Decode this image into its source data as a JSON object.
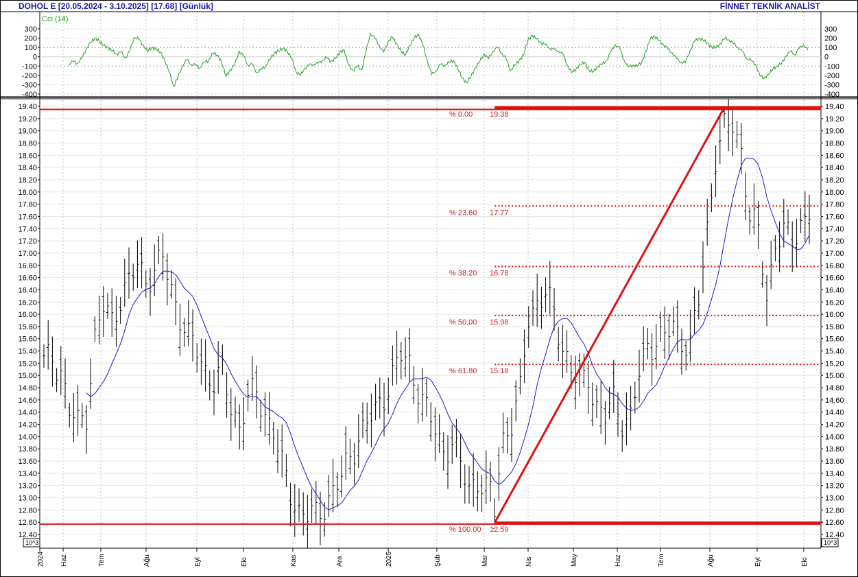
{
  "header": {
    "left": "DOHOL E  [20.05.2024 - 3.10.2025]  [17.68]  [Günlük]",
    "right": "FİNNET TEKNİK ANALİST"
  },
  "chart_data": [
    {
      "type": "line",
      "panel": "cci",
      "label": "Cci (14)",
      "ylim": [
        -400,
        300
      ],
      "yticks": [
        "300",
        "200",
        "100",
        "0",
        "-100",
        "-200",
        "-300",
        "-400"
      ],
      "grid": true,
      "colors": {
        "line": "#22a022",
        "grid": "#b8b8b8",
        "zero": "#888888"
      },
      "anchors": [
        [
          7,
          -80
        ],
        [
          8,
          -50
        ],
        [
          9,
          -70
        ],
        [
          10,
          -20
        ],
        [
          11,
          80
        ],
        [
          12,
          150
        ],
        [
          13,
          200
        ],
        [
          14,
          170
        ],
        [
          15,
          120
        ],
        [
          16,
          100
        ],
        [
          17,
          60
        ],
        [
          18,
          30
        ],
        [
          19,
          50
        ],
        [
          20,
          -10
        ],
        [
          21,
          60
        ],
        [
          22,
          210
        ],
        [
          23,
          190
        ],
        [
          24,
          130
        ],
        [
          25,
          60
        ],
        [
          26,
          100
        ],
        [
          27,
          80
        ],
        [
          28,
          50
        ],
        [
          29,
          -40
        ],
        [
          30,
          -160
        ],
        [
          31,
          -320
        ],
        [
          32,
          -220
        ],
        [
          33,
          -100
        ],
        [
          34,
          -30
        ],
        [
          35,
          -80
        ],
        [
          36,
          -90
        ],
        [
          37,
          -120
        ],
        [
          38,
          -60
        ],
        [
          39,
          -40
        ],
        [
          40,
          40
        ],
        [
          41,
          20
        ],
        [
          42,
          -60
        ],
        [
          43,
          -210
        ],
        [
          44,
          -140
        ],
        [
          45,
          -80
        ],
        [
          46,
          60
        ],
        [
          47,
          10
        ],
        [
          48,
          -90
        ],
        [
          49,
          -80
        ],
        [
          50,
          -170
        ],
        [
          51,
          -140
        ],
        [
          52,
          -100
        ],
        [
          53,
          -30
        ],
        [
          54,
          40
        ],
        [
          55,
          60
        ],
        [
          56,
          90
        ],
        [
          57,
          60
        ],
        [
          58,
          -20
        ],
        [
          59,
          -160
        ],
        [
          60,
          -200
        ],
        [
          61,
          -120
        ],
        [
          62,
          -90
        ],
        [
          63,
          -80
        ],
        [
          64,
          -70
        ],
        [
          65,
          -40
        ],
        [
          66,
          -10
        ],
        [
          67,
          -50
        ],
        [
          68,
          -20
        ],
        [
          69,
          50
        ],
        [
          70,
          70
        ],
        [
          71,
          -90
        ],
        [
          72,
          -150
        ],
        [
          73,
          -100
        ],
        [
          74,
          -140
        ],
        [
          75,
          60
        ],
        [
          76,
          250
        ],
        [
          77,
          200
        ],
        [
          78,
          120
        ],
        [
          79,
          50
        ],
        [
          80,
          160
        ],
        [
          81,
          210
        ],
        [
          82,
          140
        ],
        [
          83,
          60
        ],
        [
          84,
          20
        ],
        [
          85,
          120
        ],
        [
          86,
          200
        ],
        [
          87,
          240
        ],
        [
          88,
          120
        ],
        [
          89,
          -40
        ],
        [
          90,
          -190
        ],
        [
          91,
          -150
        ],
        [
          92,
          -80
        ],
        [
          93,
          -90
        ],
        [
          94,
          -60
        ],
        [
          95,
          -40
        ],
        [
          96,
          -130
        ],
        [
          97,
          -230
        ],
        [
          98,
          -280
        ],
        [
          99,
          -210
        ],
        [
          100,
          -120
        ],
        [
          101,
          -50
        ],
        [
          102,
          30
        ],
        [
          103,
          -20
        ],
        [
          104,
          60
        ],
        [
          105,
          100
        ],
        [
          106,
          40
        ],
        [
          107,
          -20
        ],
        [
          108,
          -150
        ],
        [
          109,
          -90
        ],
        [
          110,
          -40
        ],
        [
          111,
          20
        ],
        [
          112,
          180
        ],
        [
          113,
          230
        ],
        [
          114,
          190
        ],
        [
          115,
          150
        ],
        [
          116,
          130
        ],
        [
          117,
          90
        ],
        [
          118,
          80
        ],
        [
          119,
          60
        ],
        [
          120,
          30
        ],
        [
          121,
          -90
        ],
        [
          122,
          -170
        ],
        [
          123,
          -130
        ],
        [
          124,
          -80
        ],
        [
          125,
          -60
        ],
        [
          126,
          -150
        ],
        [
          127,
          -160
        ],
        [
          128,
          -100
        ],
        [
          129,
          -80
        ],
        [
          130,
          -40
        ],
        [
          131,
          60
        ],
        [
          132,
          130
        ],
        [
          133,
          90
        ],
        [
          134,
          -40
        ],
        [
          135,
          -110
        ],
        [
          136,
          -90
        ],
        [
          137,
          -100
        ],
        [
          138,
          -60
        ],
        [
          139,
          60
        ],
        [
          140,
          200
        ],
        [
          141,
          220
        ],
        [
          142,
          170
        ],
        [
          143,
          130
        ],
        [
          144,
          80
        ],
        [
          145,
          40
        ],
        [
          146,
          -20
        ],
        [
          147,
          -60
        ],
        [
          148,
          -60
        ],
        [
          149,
          60
        ],
        [
          150,
          160
        ],
        [
          151,
          200
        ],
        [
          152,
          180
        ],
        [
          153,
          150
        ],
        [
          154,
          100
        ],
        [
          155,
          100
        ],
        [
          156,
          140
        ],
        [
          157,
          200
        ],
        [
          158,
          180
        ],
        [
          159,
          140
        ],
        [
          160,
          100
        ],
        [
          161,
          60
        ],
        [
          162,
          -20
        ],
        [
          163,
          -40
        ],
        [
          164,
          -80
        ],
        [
          165,
          -200
        ],
        [
          166,
          -230
        ],
        [
          167,
          -190
        ],
        [
          168,
          -130
        ],
        [
          169,
          -100
        ],
        [
          170,
          -70
        ],
        [
          171,
          10
        ],
        [
          172,
          60
        ],
        [
          173,
          20
        ],
        [
          174,
          90
        ],
        [
          175,
          130
        ],
        [
          176,
          70
        ]
      ]
    },
    {
      "type": "ohlc",
      "panel": "price",
      "title": "DOHOL E",
      "ylim": [
        12.3,
        19.45
      ],
      "yticks": [
        "19.40",
        "19.20",
        "19.00",
        "18.80",
        "18.60",
        "18.40",
        "18.20",
        "18.00",
        "17.80",
        "17.60",
        "17.40",
        "17.20",
        "17.00",
        "16.80",
        "16.60",
        "16.40",
        "16.20",
        "16.00",
        "15.80",
        "15.60",
        "15.40",
        "15.20",
        "15.00",
        "14.80",
        "14.60",
        "14.40",
        "14.20",
        "14.00",
        "13.80",
        "13.60",
        "13.40",
        "13.20",
        "13.00",
        "12.80",
        "12.60",
        "12.40"
      ],
      "x_labels": [
        "2024",
        "Haz",
        "Tem",
        "Ağu",
        "Eyl",
        "Eki",
        "Kas",
        "Ara",
        "2025",
        "Şub",
        "Mar",
        "Nis",
        "May",
        "Haz",
        "Tem",
        "Ağu",
        "Eyl",
        "Eki"
      ],
      "unit_label": "10^3",
      "colors": {
        "bars": "#000000",
        "ma": "#1a1acc",
        "fib": "#dd1111",
        "grid": "#b0b0b0",
        "axis": "#000000"
      },
      "price_anchors": [
        [
          0,
          15.2
        ],
        [
          2,
          15.3
        ],
        [
          4,
          15.1
        ],
        [
          6,
          14.4
        ],
        [
          8,
          14.2
        ],
        [
          10,
          14.4
        ],
        [
          12,
          15.6
        ],
        [
          14,
          16.1
        ],
        [
          16,
          15.9
        ],
        [
          18,
          16.3
        ],
        [
          20,
          16.5
        ],
        [
          22,
          16.8
        ],
        [
          24,
          16.6
        ],
        [
          26,
          16.7
        ],
        [
          28,
          16.9
        ],
        [
          30,
          16.4
        ],
        [
          32,
          16.0
        ],
        [
          34,
          15.6
        ],
        [
          36,
          15.4
        ],
        [
          38,
          15.1
        ],
        [
          40,
          14.9
        ],
        [
          42,
          15.0
        ],
        [
          44,
          14.5
        ],
        [
          46,
          14.2
        ],
        [
          48,
          14.6
        ],
        [
          50,
          14.7
        ],
        [
          52,
          14.4
        ],
        [
          54,
          14.1
        ],
        [
          56,
          13.5
        ],
        [
          58,
          13.1
        ],
        [
          60,
          12.8
        ],
        [
          62,
          12.7
        ],
        [
          64,
          12.7
        ],
        [
          66,
          12.9
        ],
        [
          68,
          13.1
        ],
        [
          70,
          13.3
        ],
        [
          72,
          13.7
        ],
        [
          74,
          14.0
        ],
        [
          76,
          14.2
        ],
        [
          78,
          14.4
        ],
        [
          80,
          14.7
        ],
        [
          82,
          15.0
        ],
        [
          84,
          15.3
        ],
        [
          86,
          15.2
        ],
        [
          88,
          14.8
        ],
        [
          90,
          14.4
        ],
        [
          92,
          14.1
        ],
        [
          94,
          13.8
        ],
        [
          96,
          13.9
        ],
        [
          98,
          13.5
        ],
        [
          100,
          13.2
        ],
        [
          102,
          13.3
        ],
        [
          104,
          13.1
        ],
        [
          106,
          13.0
        ],
        [
          108,
          14.0
        ],
        [
          110,
          14.2
        ],
        [
          112,
          14.7
        ],
        [
          114,
          16.0
        ],
        [
          116,
          16.2
        ],
        [
          118,
          16.3
        ],
        [
          120,
          16.0
        ],
        [
          122,
          15.5
        ],
        [
          124,
          15.1
        ],
        [
          126,
          14.8
        ],
        [
          128,
          15.0
        ],
        [
          130,
          14.5
        ],
        [
          132,
          14.3
        ],
        [
          134,
          14.6
        ],
        [
          136,
          14.3
        ],
        [
          138,
          14.3
        ],
        [
          140,
          15.0
        ],
        [
          142,
          15.5
        ],
        [
          144,
          15.6
        ],
        [
          146,
          15.6
        ],
        [
          148,
          15.8
        ],
        [
          150,
          15.6
        ],
        [
          152,
          15.5
        ],
        [
          154,
          16.2
        ],
        [
          156,
          17.4
        ],
        [
          158,
          18.6
        ],
        [
          160,
          19.0
        ],
        [
          162,
          19.1
        ],
        [
          164,
          18.7
        ],
        [
          166,
          17.6
        ],
        [
          168,
          17.3
        ],
        [
          170,
          16.3
        ],
        [
          172,
          17.2
        ],
        [
          174,
          17.3
        ],
        [
          176,
          17.2
        ],
        [
          178,
          17.5
        ],
        [
          180,
          17.7
        ]
      ],
      "n_bars": 181,
      "swing_low": {
        "index": 106,
        "value": 12.59
      },
      "swing_high": {
        "index": 160,
        "value": 19.38
      },
      "fibonacci": [
        {
          "pct": "% 0.00",
          "value": "19.38",
          "y": 19.38
        },
        {
          "pct": "% 23.60",
          "value": "17.77",
          "y": 17.77
        },
        {
          "pct": "% 38.20",
          "value": "16.78",
          "y": 16.78
        },
        {
          "pct": "% 50.00",
          "value": "15.98",
          "y": 15.98
        },
        {
          "pct": "% 61.80",
          "value": "15.18",
          "y": 15.18
        },
        {
          "pct": "% 100.00",
          "value": "12.59",
          "y": 12.59
        }
      ],
      "support_line": 12.57,
      "resistance_line": 19.35
    }
  ]
}
